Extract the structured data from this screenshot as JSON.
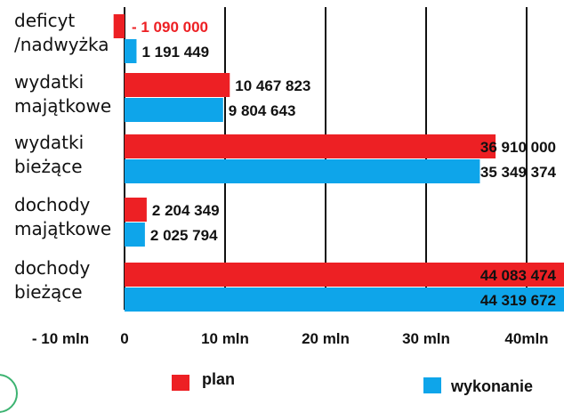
{
  "colors": {
    "plan": "#ed2024",
    "wykonanie": "#0ea5ea",
    "deficit_text": "#ed2024",
    "axis": "#111111"
  },
  "chart_data": {
    "type": "bar",
    "orientation": "horizontal",
    "categories": [
      "deficyt\n/nadwyżka",
      "wydatki\nmajątkowe",
      "wydatki\nbieżące",
      "dochody\nmajątkowe",
      "dochody\nbieżące"
    ],
    "series": [
      {
        "name": "plan",
        "values": [
          -1090000,
          10467823,
          36910000,
          2204349,
          44083474
        ],
        "labels": [
          "- 1 090 000",
          "10 467 823",
          "36 910 000",
          "2 204 349",
          "44 083 474"
        ]
      },
      {
        "name": "wykonanie",
        "values": [
          1191449,
          9804643,
          35349374,
          2025794,
          44319672
        ],
        "labels": [
          "1 191 449",
          "9 804 643",
          "35 349 374",
          "2 025 794",
          "44 319 672"
        ]
      }
    ],
    "xlim": [
      -10000000,
      44000000
    ],
    "xticks": [
      {
        "value": -10000000,
        "label": "- 10 mln"
      },
      {
        "value": 0,
        "label": "0"
      },
      {
        "value": 10000000,
        "label": "10 mln"
      },
      {
        "value": 20000000,
        "label": "20 mln"
      },
      {
        "value": 30000000,
        "label": "30 mln"
      },
      {
        "value": 40000000,
        "label": "40mln"
      }
    ],
    "gridlines": [
      10000000,
      20000000,
      30000000,
      40000000
    ],
    "legend": {
      "placement": "bottom",
      "items": [
        "plan",
        "wykonanie"
      ]
    }
  }
}
